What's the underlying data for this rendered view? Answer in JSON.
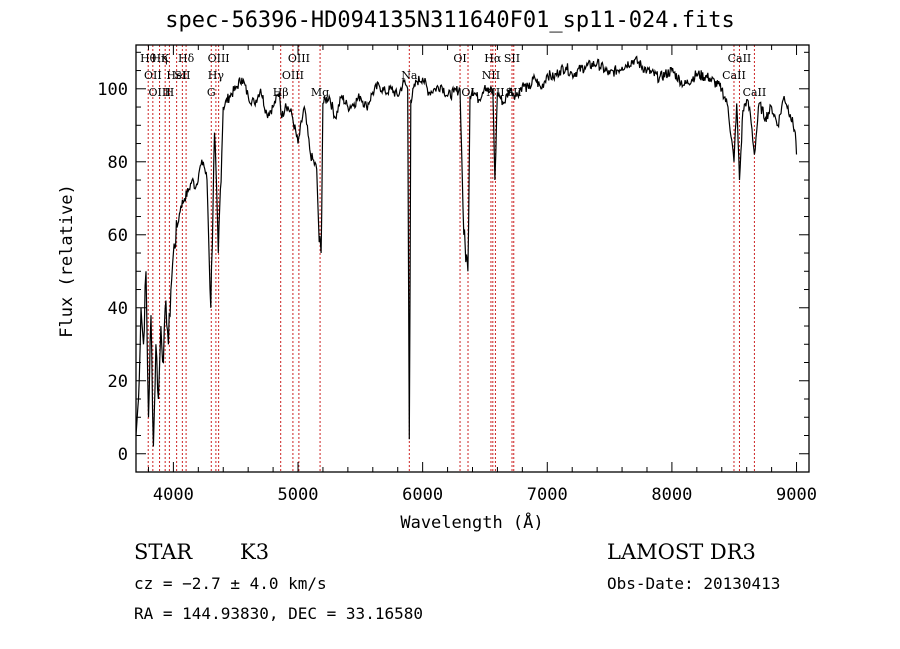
{
  "chart_data": {
    "type": "line",
    "title": "spec-56396-HD094135N311640F01_sp11-024.fits",
    "xlabel": "Wavelength (Å)",
    "ylabel": "Flux (relative)",
    "xlim": [
      3700,
      9100
    ],
    "ylim": [
      -5,
      112
    ],
    "x_ticks": [
      4000,
      5000,
      6000,
      7000,
      8000,
      9000
    ],
    "y_ticks": [
      0,
      20,
      40,
      60,
      80,
      100
    ],
    "x_tick_labels": [
      "4000",
      "5000",
      "6000",
      "7000",
      "8000",
      "9000"
    ],
    "y_tick_labels": [
      "0",
      "20",
      "40",
      "60",
      "80",
      "100"
    ],
    "series": [
      {
        "name": "flux",
        "x": [
          3700,
          3720,
          3740,
          3760,
          3780,
          3800,
          3820,
          3840,
          3860,
          3880,
          3900,
          3920,
          3940,
          3960,
          3980,
          4000,
          4030,
          4060,
          4090,
          4120,
          4150,
          4180,
          4210,
          4240,
          4270,
          4300,
          4330,
          4360,
          4400,
          4450,
          4500,
          4550,
          4600,
          4650,
          4700,
          4750,
          4800,
          4850,
          4870,
          4900,
          4950,
          5000,
          5050,
          5100,
          5150,
          5170,
          5185,
          5200,
          5250,
          5300,
          5350,
          5400,
          5450,
          5500,
          5550,
          5600,
          5650,
          5700,
          5750,
          5800,
          5850,
          5880,
          5893,
          5905,
          5950,
          6000,
          6050,
          6100,
          6150,
          6200,
          6250,
          6300,
          6330,
          6363,
          6380,
          6400,
          6450,
          6500,
          6530,
          6563,
          6580,
          6600,
          6650,
          6700,
          6750,
          6800,
          6850,
          6900,
          6950,
          7000,
          7050,
          7100,
          7150,
          7200,
          7300,
          7400,
          7500,
          7600,
          7700,
          7800,
          7900,
          8000,
          8100,
          8200,
          8300,
          8400,
          8450,
          8498,
          8520,
          8542,
          8570,
          8600,
          8630,
          8662,
          8700,
          8750,
          8800,
          8850,
          8900,
          8950,
          8990,
          9000
        ],
        "y": [
          5,
          15,
          40,
          30,
          50,
          10,
          38,
          2,
          30,
          15,
          35,
          25,
          42,
          30,
          45,
          55,
          62,
          68,
          70,
          72,
          75,
          73,
          78,
          80,
          75,
          40,
          88,
          55,
          95,
          98,
          100,
          103,
          98,
          96,
          100,
          93,
          95,
          99,
          92,
          96,
          93,
          85,
          95,
          82,
          78,
          58,
          55,
          96,
          98,
          92,
          98,
          95,
          96,
          98,
          95,
          99,
          101,
          99,
          100,
          98,
          102,
          100,
          4,
          97,
          102,
          103,
          99,
          100,
          101,
          98,
          99,
          100,
          60,
          50,
          98,
          100,
          97,
          101,
          99,
          100,
          75,
          99,
          96,
          100,
          98,
          101,
          100,
          103,
          100,
          104,
          103,
          105,
          106,
          104,
          106,
          107,
          104,
          106,
          108,
          105,
          103,
          105,
          101,
          104,
          103,
          100,
          95,
          80,
          96,
          75,
          94,
          97,
          93,
          82,
          96,
          92,
          95,
          90,
          98,
          93,
          88,
          82
        ]
      }
    ],
    "lines": [
      {
        "wl": 3798,
        "labels": [
          {
            "text": "Hθ",
            "row": 1
          }
        ]
      },
      {
        "wl": 3835,
        "labels": [
          {
            "text": "OII",
            "row": 2
          }
        ]
      },
      {
        "wl": 3889,
        "labels": [
          {
            "text": "Hη",
            "row": 1
          },
          {
            "text": "OIII",
            "row": 3
          }
        ]
      },
      {
        "wl": 3934,
        "labels": [
          {
            "text": "K",
            "row": 1
          }
        ]
      },
      {
        "wl": 3968,
        "labels": [
          {
            "text": "H",
            "row": 3
          }
        ]
      },
      {
        "wl": 4026,
        "labels": [
          {
            "text": "HeI",
            "row": 2
          }
        ]
      },
      {
        "wl": 4072,
        "labels": [
          {
            "text": "SII",
            "row": 2
          }
        ]
      },
      {
        "wl": 4102,
        "labels": [
          {
            "text": "Hδ",
            "row": 1
          }
        ]
      },
      {
        "wl": 4304,
        "labels": [
          {
            "text": "G",
            "row": 3
          }
        ]
      },
      {
        "wl": 4341,
        "labels": [
          {
            "text": "Hγ",
            "row": 2
          }
        ]
      },
      {
        "wl": 4363,
        "labels": [
          {
            "text": "OIII",
            "row": 1
          }
        ]
      },
      {
        "wl": 4861,
        "labels": [
          {
            "text": "Hβ",
            "row": 3
          }
        ]
      },
      {
        "wl": 4959,
        "labels": [
          {
            "text": "OIII",
            "row": 2
          }
        ]
      },
      {
        "wl": 5007,
        "labels": [
          {
            "text": "OIII",
            "row": 1
          }
        ]
      },
      {
        "wl": 5177,
        "labels": [
          {
            "text": "Mg",
            "row": 3
          }
        ]
      },
      {
        "wl": 5893,
        "labels": [
          {
            "text": "Na",
            "row": 2
          }
        ]
      },
      {
        "wl": 6300,
        "labels": [
          {
            "text": "OI",
            "row": 1
          }
        ]
      },
      {
        "wl": 6364,
        "labels": [
          {
            "text": "OI",
            "row": 3
          }
        ]
      },
      {
        "wl": 6548,
        "labels": [
          {
            "text": "NII",
            "row": 2
          }
        ]
      },
      {
        "wl": 6563,
        "labels": [
          {
            "text": "Hα",
            "row": 1
          }
        ]
      },
      {
        "wl": 6584,
        "labels": [
          {
            "text": "NII",
            "row": 3
          }
        ]
      },
      {
        "wl": 6717,
        "labels": [
          {
            "text": "SII",
            "row": 1
          }
        ]
      },
      {
        "wl": 6731,
        "labels": [
          {
            "text": "SII",
            "row": 3
          }
        ]
      },
      {
        "wl": 8498,
        "labels": [
          {
            "text": "CaII",
            "row": 2
          }
        ]
      },
      {
        "wl": 8542,
        "labels": [
          {
            "text": "CaII",
            "row": 1
          }
        ]
      },
      {
        "wl": 8662,
        "labels": [
          {
            "text": "CaII",
            "row": 3
          }
        ]
      }
    ]
  },
  "info": {
    "class": "STAR",
    "subclass": "K3",
    "survey": "LAMOST DR3",
    "cz": "cz = −2.7 ± 4.0 km/s",
    "obs_date": "Obs-Date: 20130413",
    "coords": "RA = 144.93830, DEC =  33.16580"
  }
}
